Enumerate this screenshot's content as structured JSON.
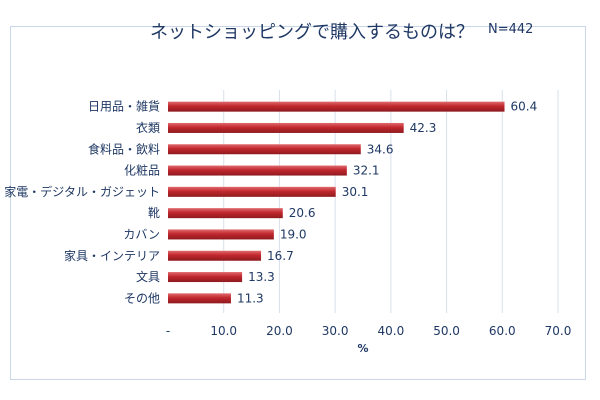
{
  "chart_data": {
    "type": "bar",
    "orientation": "horizontal",
    "title": "ネットショッピングで購入するものは？",
    "annotation": "N=442",
    "categories": [
      "日用品・雑貨",
      "衣類",
      "食料品・飲料",
      "化粧品",
      "家電・デジタル・ガジェット",
      "靴",
      "カバン",
      "家具・インテリア",
      "文具",
      "その他"
    ],
    "values": [
      60.4,
      42.3,
      34.6,
      32.1,
      30.1,
      20.6,
      19.0,
      16.7,
      13.3,
      11.3
    ],
    "value_labels": [
      "60.4",
      "42.3",
      "34.6",
      "32.1",
      "30.1",
      "20.6",
      "19.0",
      "16.7",
      "13.3",
      "11.3"
    ],
    "x_ticks": [
      "-",
      "10.0",
      "20.0",
      "30.0",
      "40.0",
      "50.0",
      "60.0",
      "70.0"
    ],
    "xlim": [
      0,
      70
    ],
    "xlabel": "%",
    "grid": "vertical",
    "bar_color": "#c0272d",
    "legend": "none"
  }
}
